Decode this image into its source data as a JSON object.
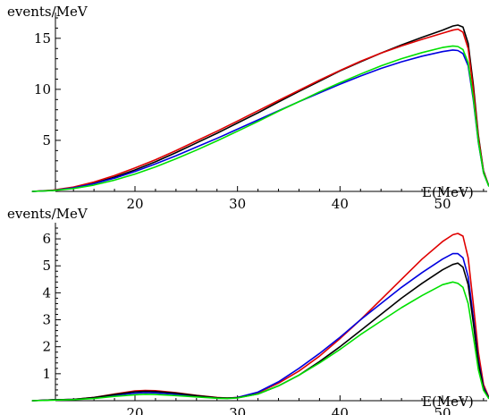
{
  "chart_data": [
    {
      "type": "line",
      "ylabel": "events/MeV",
      "xlabel": "E(MeV)",
      "xlim": [
        10,
        56
      ],
      "ylim": [
        0,
        17
      ],
      "x_ticks": [
        20,
        30,
        40,
        50
      ],
      "y_ticks": [
        5,
        10,
        15
      ],
      "grid": false,
      "series": [
        {
          "color": "#000000",
          "x": [
            10,
            12,
            14,
            16,
            18,
            20,
            22,
            24,
            26,
            28,
            30,
            32,
            34,
            36,
            38,
            40,
            42,
            44,
            46,
            48,
            50,
            51,
            51.5,
            52,
            52.5,
            53,
            53.5,
            54,
            54.5,
            55,
            56
          ],
          "values": [
            0,
            0.1,
            0.35,
            0.8,
            1.4,
            2.1,
            2.9,
            3.8,
            4.75,
            5.7,
            6.7,
            7.7,
            8.75,
            9.8,
            10.8,
            11.8,
            12.7,
            13.55,
            14.35,
            15.1,
            15.8,
            16.2,
            16.3,
            16.1,
            14.5,
            10.5,
            5.5,
            2.0,
            0.6,
            0.15,
            0
          ]
        },
        {
          "color": "#e00000",
          "x": [
            10,
            12,
            14,
            16,
            18,
            20,
            22,
            24,
            26,
            28,
            30,
            32,
            34,
            36,
            38,
            40,
            42,
            44,
            46,
            48,
            50,
            51,
            51.5,
            52,
            52.5,
            53,
            53.5,
            54,
            54.5,
            55,
            56
          ],
          "values": [
            0,
            0.12,
            0.42,
            0.92,
            1.55,
            2.3,
            3.1,
            4.0,
            4.95,
            5.9,
            6.9,
            7.9,
            8.9,
            9.9,
            10.9,
            11.85,
            12.75,
            13.55,
            14.25,
            14.9,
            15.5,
            15.8,
            15.9,
            15.6,
            14.0,
            10.0,
            5.3,
            1.9,
            0.6,
            0.15,
            0
          ]
        },
        {
          "color": "#0000e0",
          "x": [
            10,
            12,
            14,
            16,
            18,
            20,
            22,
            24,
            26,
            28,
            30,
            32,
            34,
            36,
            38,
            40,
            42,
            44,
            46,
            48,
            50,
            51,
            51.5,
            52,
            52.5,
            53,
            53.5,
            54,
            54.5,
            55,
            56
          ],
          "values": [
            0,
            0.1,
            0.35,
            0.75,
            1.3,
            1.95,
            2.7,
            3.5,
            4.35,
            5.2,
            6.1,
            7.0,
            7.9,
            8.8,
            9.65,
            10.5,
            11.3,
            12.05,
            12.7,
            13.25,
            13.7,
            13.85,
            13.8,
            13.5,
            12.3,
            9.0,
            4.8,
            1.8,
            0.55,
            0.15,
            0
          ]
        },
        {
          "color": "#00e000",
          "x": [
            10,
            12,
            14,
            16,
            18,
            20,
            22,
            24,
            26,
            28,
            30,
            32,
            34,
            36,
            38,
            40,
            42,
            44,
            46,
            48,
            50,
            51,
            51.5,
            52,
            52.5,
            53,
            53.5,
            54,
            54.5,
            55,
            56
          ],
          "values": [
            0,
            0.08,
            0.28,
            0.62,
            1.1,
            1.7,
            2.4,
            3.2,
            4.05,
            4.95,
            5.9,
            6.85,
            7.85,
            8.8,
            9.75,
            10.65,
            11.5,
            12.3,
            13.0,
            13.6,
            14.1,
            14.25,
            14.2,
            13.9,
            12.6,
            9.2,
            4.9,
            1.8,
            0.55,
            0.15,
            0
          ]
        }
      ]
    },
    {
      "type": "line",
      "ylabel": "events/MeV",
      "xlabel": "E(MeV)",
      "xlim": [
        10,
        56
      ],
      "ylim": [
        0,
        6.4
      ],
      "x_ticks": [
        20,
        30,
        40,
        50
      ],
      "y_ticks": [
        1,
        2,
        3,
        4,
        5,
        6
      ],
      "grid": false,
      "series": [
        {
          "color": "#e00000",
          "x": [
            10,
            12,
            14,
            16,
            18,
            20,
            21,
            22,
            24,
            26,
            28,
            29,
            30,
            32,
            34,
            36,
            38,
            40,
            42,
            44,
            46,
            48,
            50,
            51,
            51.5,
            52,
            52.5,
            53,
            53.5,
            54,
            54.5,
            55,
            56
          ],
          "values": [
            0,
            0.03,
            0.05,
            0.12,
            0.25,
            0.36,
            0.38,
            0.37,
            0.3,
            0.2,
            0.12,
            0.1,
            0.12,
            0.3,
            0.65,
            1.1,
            1.65,
            2.3,
            3.0,
            3.75,
            4.5,
            5.25,
            5.9,
            6.15,
            6.2,
            6.1,
            5.3,
            3.6,
            1.8,
            0.6,
            0.15,
            0.03,
            0
          ]
        },
        {
          "color": "#0000e0",
          "x": [
            10,
            12,
            14,
            16,
            18,
            20,
            21,
            22,
            24,
            26,
            28,
            29,
            30,
            32,
            34,
            36,
            38,
            40,
            42,
            44,
            46,
            48,
            50,
            51,
            51.5,
            52,
            52.5,
            53,
            53.5,
            54,
            54.5,
            55,
            56
          ],
          "values": [
            0,
            0.03,
            0.05,
            0.1,
            0.2,
            0.28,
            0.3,
            0.29,
            0.24,
            0.17,
            0.1,
            0.09,
            0.12,
            0.32,
            0.7,
            1.2,
            1.75,
            2.35,
            3.0,
            3.6,
            4.2,
            4.75,
            5.25,
            5.45,
            5.45,
            5.3,
            4.6,
            3.1,
            1.5,
            0.5,
            0.12,
            0.03,
            0
          ]
        },
        {
          "color": "#000000",
          "x": [
            10,
            12,
            14,
            16,
            18,
            20,
            21,
            22,
            24,
            26,
            28,
            29,
            30,
            32,
            34,
            36,
            38,
            40,
            42,
            44,
            46,
            48,
            50,
            51,
            51.5,
            52,
            52.5,
            53,
            53.5,
            54,
            54.5,
            55,
            56
          ],
          "values": [
            0,
            0.03,
            0.05,
            0.12,
            0.23,
            0.33,
            0.35,
            0.34,
            0.28,
            0.19,
            0.11,
            0.1,
            0.11,
            0.25,
            0.55,
            0.95,
            1.45,
            2.0,
            2.6,
            3.2,
            3.8,
            4.35,
            4.85,
            5.05,
            5.1,
            4.95,
            4.3,
            2.9,
            1.4,
            0.45,
            0.1,
            0.02,
            0
          ]
        },
        {
          "color": "#00e000",
          "x": [
            10,
            12,
            14,
            16,
            18,
            20,
            21,
            22,
            24,
            26,
            28,
            29,
            30,
            32,
            34,
            36,
            38,
            40,
            42,
            44,
            46,
            48,
            50,
            51,
            51.5,
            52,
            52.5,
            53,
            53.5,
            54,
            54.5,
            55,
            56
          ],
          "values": [
            0,
            0.02,
            0.04,
            0.08,
            0.16,
            0.22,
            0.24,
            0.23,
            0.19,
            0.14,
            0.09,
            0.08,
            0.1,
            0.25,
            0.55,
            0.95,
            1.4,
            1.9,
            2.45,
            2.95,
            3.45,
            3.9,
            4.3,
            4.4,
            4.35,
            4.2,
            3.6,
            2.4,
            1.15,
            0.38,
            0.09,
            0.02,
            0
          ]
        }
      ]
    }
  ]
}
